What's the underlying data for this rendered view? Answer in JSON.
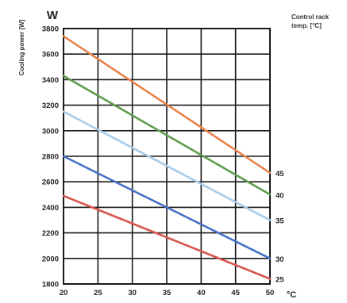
{
  "chart_data": {
    "type": "line",
    "ylabel": "Cooling power [W]",
    "yunit": "W",
    "xunit": "°C",
    "legend_title_line1": "Control rack",
    "legend_title_line2": "temp. [°C]",
    "xlim": [
      20,
      50
    ],
    "ylim": [
      1800,
      3800
    ],
    "xticks": [
      20,
      25,
      30,
      35,
      40,
      45,
      50
    ],
    "yticks": [
      1800,
      2000,
      2200,
      2400,
      2600,
      2800,
      3000,
      3200,
      3400,
      3600,
      3800
    ],
    "grid": true,
    "colors": {
      "grid": "#1a1a1a",
      "axis": "#1a1a1a",
      "text": "#222222"
    },
    "series": [
      {
        "name": "45",
        "color": "#e8834a",
        "x": [
          20,
          50
        ],
        "y": [
          3740,
          2670
        ]
      },
      {
        "name": "40",
        "color": "#5f9c4c",
        "x": [
          20,
          50
        ],
        "y": [
          3430,
          2500
        ]
      },
      {
        "name": "35",
        "color": "#a8cbe9",
        "x": [
          20,
          50
        ],
        "y": [
          3150,
          2300
        ]
      },
      {
        "name": "30",
        "color": "#4472c4",
        "x": [
          20,
          50
        ],
        "y": [
          2800,
          2000
        ]
      },
      {
        "name": "25",
        "color": "#d9534f",
        "x": [
          20,
          50
        ],
        "y": [
          2490,
          1840
        ]
      }
    ]
  }
}
